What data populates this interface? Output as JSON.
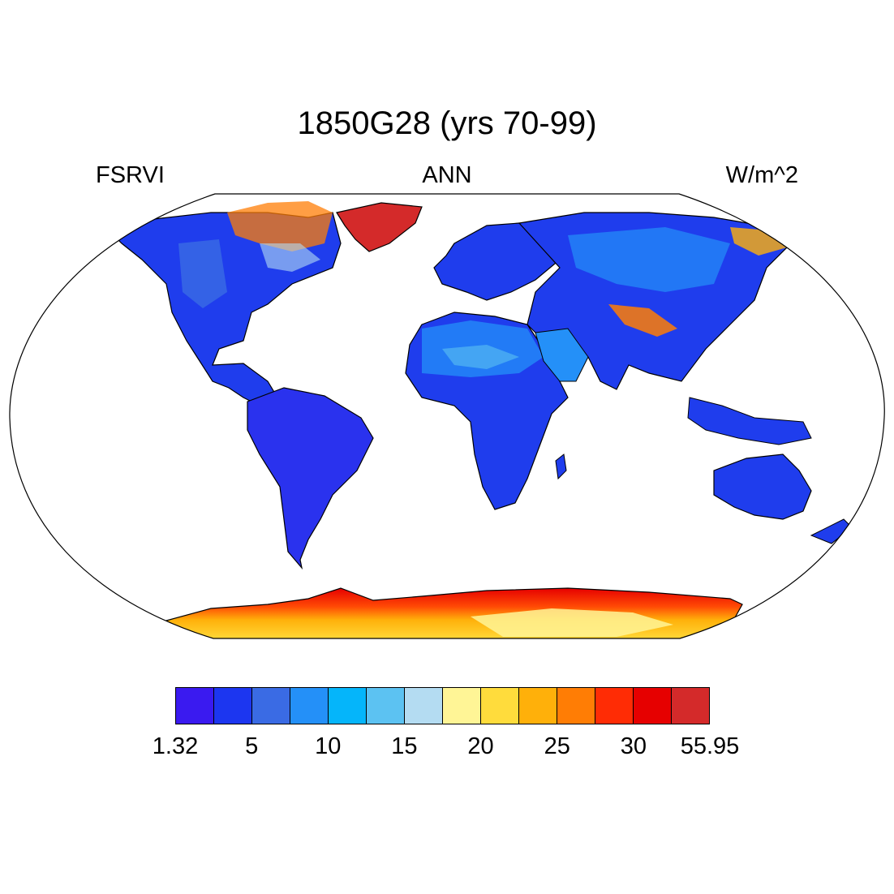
{
  "title": "1850G28 (yrs 70-99)",
  "left_label": "FSRVI",
  "center_label": "ANN",
  "right_label": "W/m^2",
  "map": {
    "projection": "robinson",
    "land_color": "#1f3ded",
    "ocean_color": "#ffffff",
    "coastline_color": "#000000"
  },
  "colorbar": {
    "colors": [
      "#3a1af0",
      "#1c36f0",
      "#3a6be4",
      "#2490f8",
      "#05b5fa",
      "#5cc2f2",
      "#b4dcf2",
      "#fff596",
      "#ffdc3c",
      "#ffb00a",
      "#ff7d05",
      "#ff2c05",
      "#e60000",
      "#d42a2a"
    ],
    "tick_labels": [
      "1.32",
      "5",
      "10",
      "15",
      "20",
      "25",
      "30",
      "55.95"
    ]
  }
}
